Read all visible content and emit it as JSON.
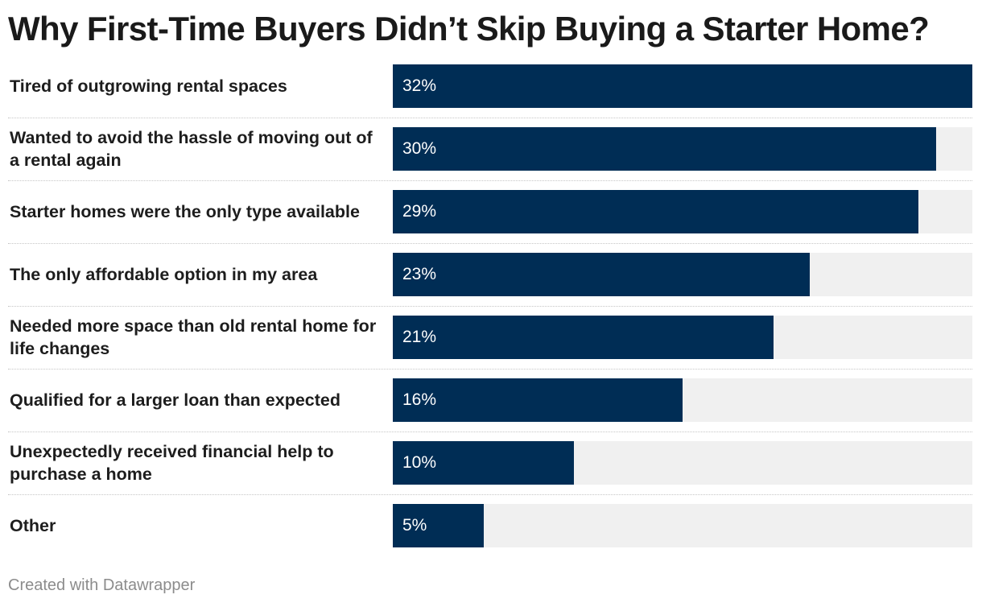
{
  "chart_data": {
    "type": "bar",
    "orientation": "horizontal",
    "title": "Why First-Time Buyers Didn’t Skip Buying a Starter Home?",
    "categories": [
      "Tired of outgrowing rental spaces",
      "Wanted to avoid the hassle of moving out of a rental again",
      "Starter homes were the only type available",
      "The only affordable option in my area",
      "Needed more space than old rental home for life changes",
      "Qualified for a larger loan than expected",
      "Unexpectedly received financial help to purchase a home",
      "Other"
    ],
    "values": [
      32,
      30,
      29,
      23,
      21,
      16,
      10,
      5
    ],
    "value_labels": [
      "32%",
      "30%",
      "29%",
      "23%",
      "21%",
      "16%",
      "10%",
      "5%"
    ],
    "unit": "%",
    "xlim": [
      0,
      32
    ],
    "grid": false,
    "bar_color": "#002d55",
    "track_color": "#f0f0f0"
  },
  "footer": {
    "credit": "Created with Datawrapper"
  }
}
